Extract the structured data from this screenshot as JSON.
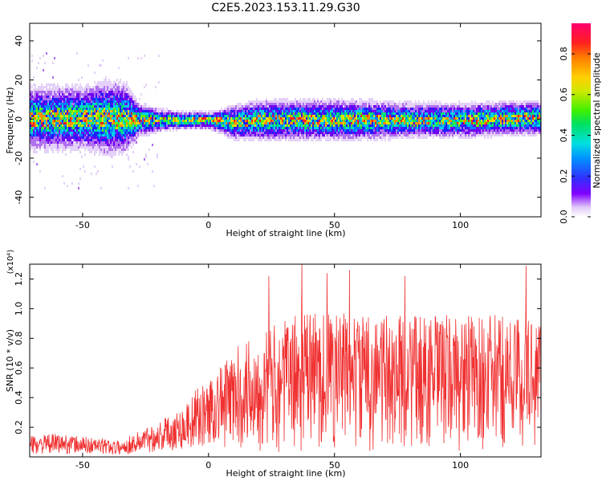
{
  "title": "C2E5.2023.153.11.29.G30",
  "chart_data": [
    {
      "type": "heatmap",
      "xlabel": "Height of straight line (km)",
      "ylabel": "Frequency (Hz)",
      "xlim": [
        -71,
        132
      ],
      "ylim": [
        -50,
        49
      ],
      "xticks": [
        "-50",
        "0",
        "50",
        "100"
      ],
      "yticks": [
        "40",
        "20",
        "0",
        "-20",
        "-40"
      ],
      "colorbar": {
        "label": "Normalized spectral amplitude",
        "range": [
          0,
          0.95
        ],
        "ticks": [
          "0.0",
          "0.2",
          "0.4",
          "0.6",
          "0.8"
        ]
      },
      "band_profile": {
        "x": [
          -71,
          -50,
          -40,
          -33,
          -28,
          -20,
          -10,
          0,
          10,
          20,
          40,
          60,
          80,
          100,
          120,
          132
        ],
        "center_hz": [
          1,
          1,
          1,
          1,
          0,
          0,
          0,
          0,
          -1,
          0,
          0,
          0,
          0,
          0,
          1,
          1
        ],
        "half_width_hz": [
          11,
          11,
          13,
          12,
          6,
          4,
          3,
          3,
          6,
          7,
          7,
          7,
          6,
          6,
          6,
          6
        ]
      }
    },
    {
      "type": "line",
      "xlabel": "Height of straight line (km)",
      "ylabel": "SNR (10 * v/v)",
      "scale_label": "(x10⁴)",
      "xlim": [
        -71,
        132
      ],
      "ylim": [
        0,
        1.3
      ],
      "xticks": [
        "-50",
        "0",
        "50",
        "100"
      ],
      "yticks": [
        "0.2",
        "0.4",
        "0.6",
        "0.8",
        "1.0",
        "1.2"
      ],
      "color": "#f03030",
      "envelope": {
        "x": [
          -71,
          -60,
          -50,
          -40,
          -35,
          -30,
          -20,
          -10,
          -5,
          0,
          5,
          10,
          15,
          20,
          25,
          30,
          40,
          50,
          60,
          70,
          80,
          90,
          100,
          110,
          120,
          132
        ],
        "y": [
          0.08,
          0.09,
          0.08,
          0.07,
          0.06,
          0.09,
          0.14,
          0.2,
          0.26,
          0.3,
          0.38,
          0.45,
          0.5,
          0.52,
          0.55,
          0.58,
          0.62,
          0.62,
          0.6,
          0.6,
          0.6,
          0.6,
          0.6,
          0.6,
          0.6,
          0.6
        ]
      },
      "peaks": [
        {
          "x": 24,
          "y": 1.22
        },
        {
          "x": 37,
          "y": 1.31
        },
        {
          "x": 47,
          "y": 1.24
        },
        {
          "x": 56,
          "y": 1.26
        },
        {
          "x": 78,
          "y": 1.22
        },
        {
          "x": 126,
          "y": 1.29
        }
      ]
    }
  ]
}
